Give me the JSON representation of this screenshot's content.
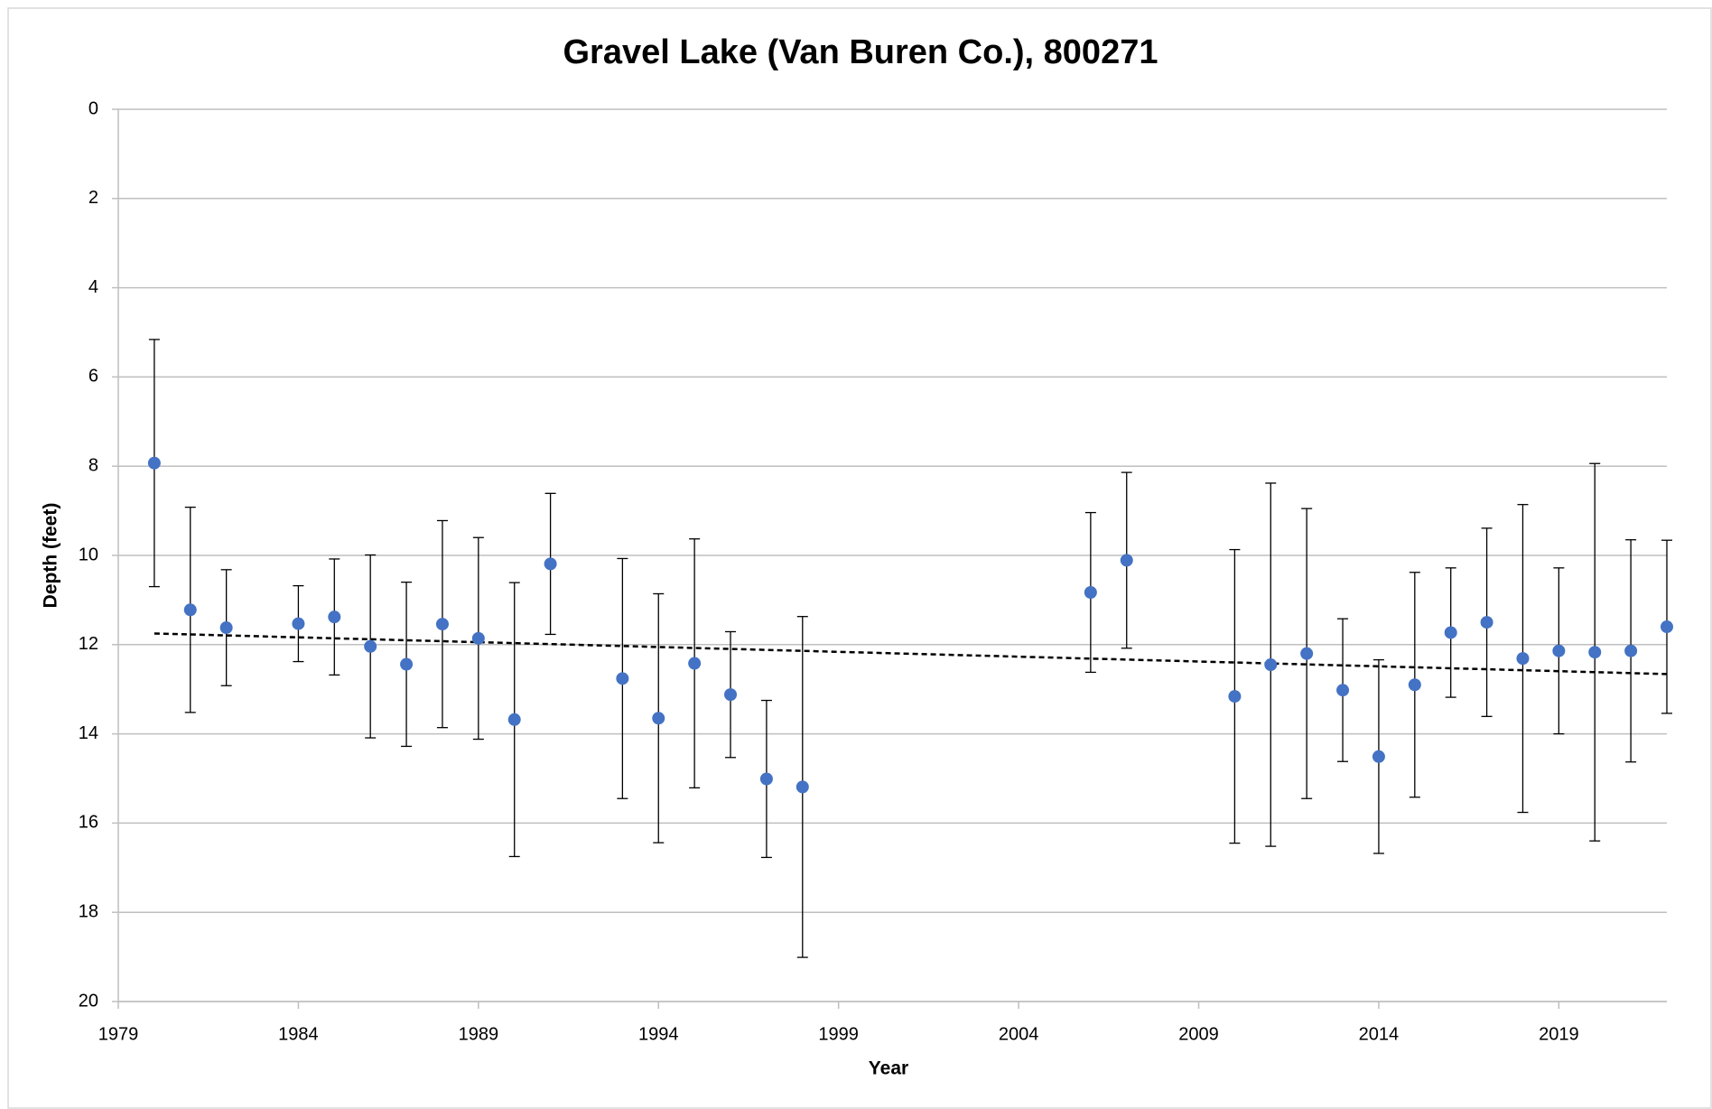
{
  "chart_data": {
    "type": "scatter",
    "title": "Gravel Lake (Van Buren Co.), 800271",
    "x_label": "Year",
    "y_label": "Depth (feet)",
    "xlim": [
      1979,
      2022
    ],
    "xticks": [
      1979,
      1984,
      1989,
      1994,
      1999,
      2004,
      2009,
      2014,
      2019
    ],
    "ylim": [
      0,
      20
    ],
    "yticks": [
      0,
      2,
      4,
      6,
      8,
      10,
      12,
      14,
      16,
      18,
      20
    ],
    "y_inverted": true,
    "grid": true,
    "color": "#4472c4",
    "x": [
      1980,
      1981,
      1982,
      1984,
      1985,
      1986,
      1987,
      1988,
      1989,
      1990,
      1991,
      1993,
      1994,
      1995,
      1996,
      1997,
      1998,
      2006,
      2007,
      2010,
      2011,
      2012,
      2013,
      2014,
      2015,
      2016,
      2017,
      2018,
      2019,
      2020,
      2021,
      2022
    ],
    "values": [
      7.93,
      11.22,
      11.62,
      11.53,
      11.38,
      12.04,
      12.44,
      11.54,
      11.86,
      13.68,
      10.19,
      12.76,
      13.65,
      12.42,
      13.12,
      15.01,
      15.19,
      10.83,
      10.11,
      13.16,
      12.45,
      12.2,
      13.02,
      14.51,
      12.9,
      11.73,
      11.5,
      12.31,
      12.14,
      12.17,
      12.14,
      11.6
    ],
    "errors": [
      2.77,
      2.3,
      1.3,
      0.85,
      1.3,
      2.05,
      1.84,
      2.32,
      2.26,
      3.07,
      1.58,
      2.69,
      2.79,
      2.79,
      1.41,
      1.76,
      3.82,
      1.79,
      1.97,
      3.29,
      4.07,
      3.25,
      1.6,
      2.17,
      2.52,
      1.45,
      2.11,
      3.45,
      1.86,
      4.23,
      2.49,
      1.94
    ],
    "trend": {
      "x": [
        1980,
        2022
      ],
      "values": [
        11.75,
        12.66
      ],
      "color": "#000000"
    }
  }
}
